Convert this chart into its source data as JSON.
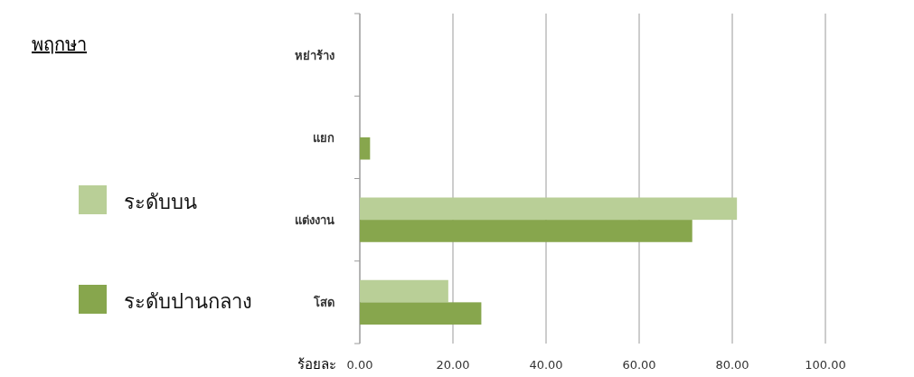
{
  "chart_data": {
    "type": "bar",
    "orientation": "horizontal",
    "title": "พฤกษา",
    "xlabel": "ร้อยละ",
    "categories": [
      "หย่าร้าง",
      "แยก",
      "แต่งงาน",
      "โสด"
    ],
    "series": [
      {
        "name": "ระดับบน",
        "color": "#b9cf97",
        "values": [
          0,
          0,
          81.0,
          19.0
        ]
      },
      {
        "name": "ระดับปานกลาง",
        "color": "#87a64d",
        "values": [
          0,
          2.2,
          71.4,
          26.1
        ]
      }
    ],
    "xlim": [
      0,
      100
    ],
    "xticks": [
      {
        "value": 0,
        "label": "0.00"
      },
      {
        "value": 20,
        "label": "20.00"
      },
      {
        "value": 40,
        "label": "40.00"
      },
      {
        "value": 60,
        "label": "60.00"
      },
      {
        "value": 80,
        "label": "80.00"
      },
      {
        "value": 100,
        "label": "100.00"
      }
    ],
    "grid": "x",
    "legend": "left"
  }
}
